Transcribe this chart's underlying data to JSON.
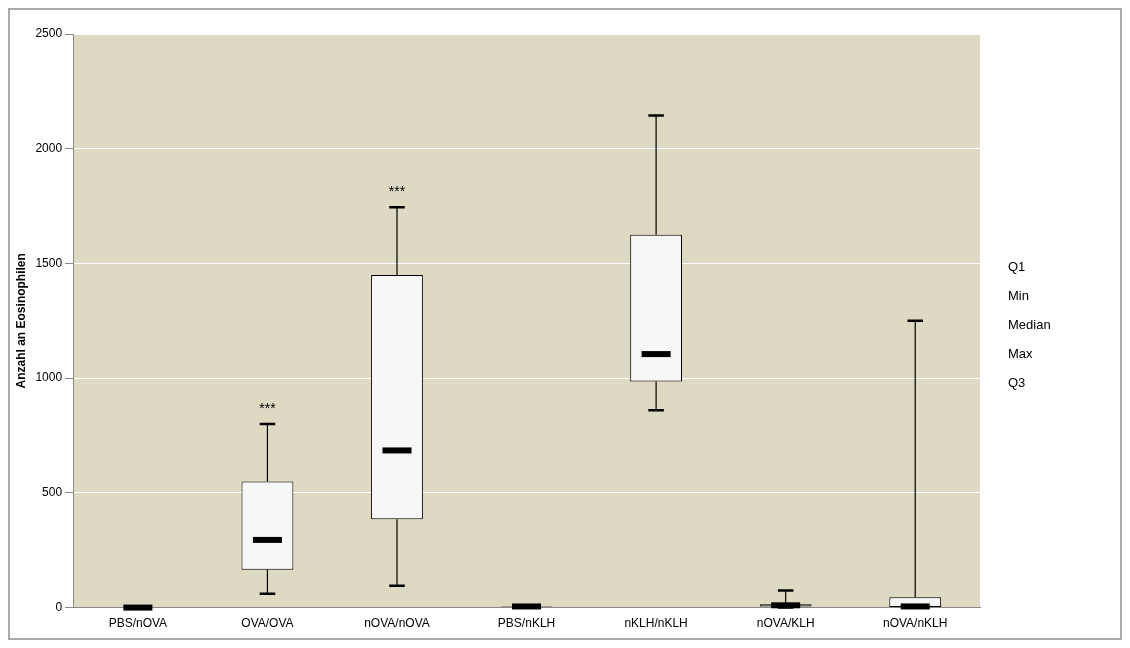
{
  "chart_data": {
    "type": "box",
    "ylabel": "Anzahl an Eosinophilen",
    "categories": [
      "PBS/nOVA",
      "OVA/OVA",
      "nOVA/nOVA",
      "PBS/nKLH",
      "nKLH/nKLH",
      "nOVA/KLH",
      "nOVA/nKLH"
    ],
    "boxes": [
      {
        "low": 0,
        "q1": 0,
        "median": 0,
        "q3": 0,
        "high": 0
      },
      {
        "low": 60,
        "q1": 165,
        "median": 295,
        "q3": 550,
        "high": 800
      },
      {
        "low": 95,
        "q1": 385,
        "median": 685,
        "q3": 1450,
        "high": 1745
      },
      {
        "low": 0,
        "q1": 0,
        "median": 5,
        "q3": 5,
        "high": 5
      },
      {
        "low": 860,
        "q1": 985,
        "median": 1105,
        "q3": 1625,
        "high": 2145
      },
      {
        "low": 0,
        "q1": 5,
        "median": 10,
        "q3": 15,
        "high": 75
      },
      {
        "low": 0,
        "q1": 0,
        "median": 5,
        "q3": 45,
        "high": 1250
      }
    ],
    "ylim": [
      0,
      2500
    ],
    "yticks": [
      0,
      500,
      1000,
      1500,
      2000,
      2500
    ],
    "grid": "y",
    "annotations": [
      {
        "text": "***",
        "x": "OVA/OVA",
        "y": 800
      },
      {
        "text": "***",
        "x": "nOVA/nOVA",
        "y": 1745
      },
      "Q1",
      "Min",
      "Median",
      "Max",
      "Q3"
    ]
  }
}
